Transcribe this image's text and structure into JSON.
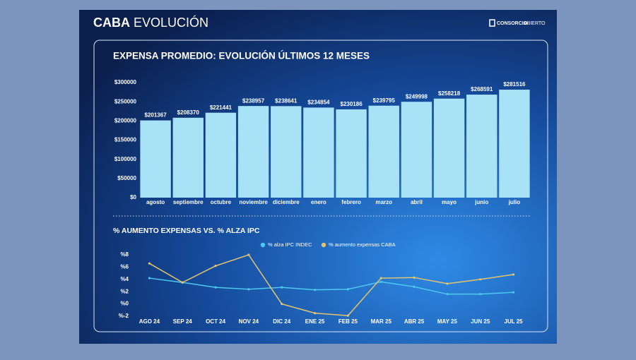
{
  "header": {
    "title_bold": "CABA",
    "title": "EVOLUCIÓN",
    "logo_bold": "CONSORCIO",
    "logo": "ABIERTO"
  },
  "chart_data": [
    {
      "type": "bar",
      "title": "EXPENSA PROMEDIO: EVOLUCIÓN ÚLTIMOS 12 MESES",
      "categories": [
        "agosto",
        "septiembre",
        "octubre",
        "noviembre",
        "diciembre",
        "enero",
        "febrero",
        "marzo",
        "abril",
        "mayo",
        "junio",
        "julio"
      ],
      "values": [
        201367,
        208370,
        221441,
        238957,
        238641,
        234854,
        230186,
        239795,
        249998,
        258218,
        268591,
        281516
      ],
      "value_labels": [
        "$201367",
        "$208370",
        "$221441",
        "$238957",
        "$238641",
        "$234854",
        "$230186",
        "$239795",
        "$249998",
        "$258218",
        "$268591",
        "$281516"
      ],
      "color": "#a8e2f7",
      "ylim": [
        0,
        300000
      ],
      "yticks": [
        {
          "value": 0,
          "label": "$0"
        },
        {
          "value": 50000,
          "label": "$50000"
        },
        {
          "value": 100000,
          "label": "$100000"
        },
        {
          "value": 150000,
          "label": "$150000"
        },
        {
          "value": 200000,
          "label": "$200000"
        },
        {
          "value": 250000,
          "label": "$250000"
        },
        {
          "value": 300000,
          "label": "$300000"
        }
      ]
    },
    {
      "type": "line",
      "title": "% AUMENTO EXPENSAS VS. % ALZA IPC",
      "categories": [
        "AGO 24",
        "SEP 24",
        "OCT 24",
        "NOV 24",
        "DIC 24",
        "ENE 25",
        "FEB 25",
        "MAR 25",
        "ABR 25",
        "MAY 25",
        "JUN 25",
        "JUL 25"
      ],
      "series": [
        {
          "name": "% alza IPC INDEC",
          "color": "#4fc8f0",
          "values": [
            4.2,
            3.5,
            2.7,
            2.4,
            2.7,
            2.3,
            2.4,
            3.6,
            2.8,
            1.6,
            1.6,
            1.9
          ]
        },
        {
          "name": "% aumento expensas CABA",
          "color": "#e6c46e",
          "values": [
            6.6,
            3.5,
            6.2,
            8.0,
            0.0,
            -1.5,
            -1.9,
            4.2,
            4.3,
            3.3,
            4.0,
            4.8
          ]
        }
      ],
      "ylim": [
        -2,
        8
      ],
      "yticks": [
        {
          "value": -2,
          "label": "%-2"
        },
        {
          "value": 0,
          "label": "%0"
        },
        {
          "value": 2,
          "label": "%2"
        },
        {
          "value": 4,
          "label": "%4"
        },
        {
          "value": 6,
          "label": "%6"
        },
        {
          "value": 8,
          "label": "%8"
        }
      ],
      "legend": "top"
    }
  ]
}
